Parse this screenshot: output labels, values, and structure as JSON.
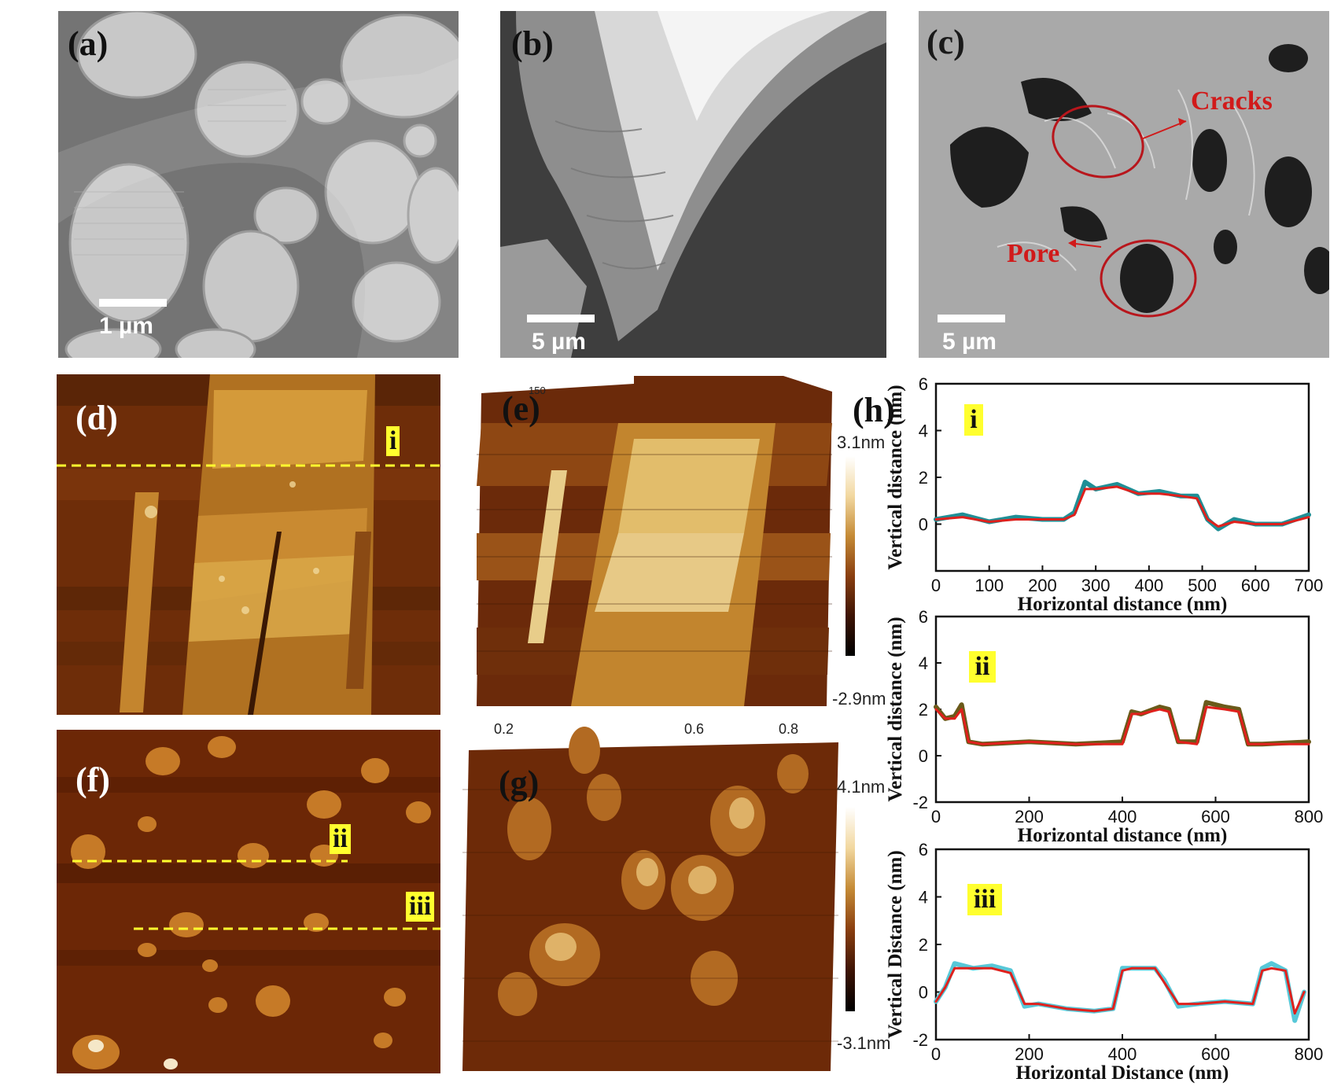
{
  "panels": {
    "a": {
      "label": "(a)",
      "scale": "1 µm"
    },
    "b": {
      "label": "(b)",
      "scale": "5 µm"
    },
    "c": {
      "label": "(c)",
      "scale": "5 µm",
      "annotations": [
        "Cracks",
        "Pore"
      ]
    },
    "d": {
      "label": "(d)",
      "line_tag": "i"
    },
    "e": {
      "label": "(e)",
      "colorbar_max": "3.1nm",
      "colorbar_min": "-2.9nm",
      "ticks": [
        "150"
      ]
    },
    "f": {
      "label": "(f)",
      "line_tags": [
        "ii",
        "iii"
      ]
    },
    "g": {
      "label": "(g)",
      "colorbar_max": "4.1nm",
      "colorbar_min": "-3.1nm",
      "ticks": [
        "0.2",
        "0.6",
        "0.8"
      ]
    },
    "h": {
      "label": "(h)"
    }
  },
  "colors": {
    "annotation_red": "#d11a1a",
    "highlight_yellow": "#ffff2e",
    "raw_teal": "#1f8f96",
    "raw_cyan": "#57c8d8",
    "raw_olive": "#6a5a1a",
    "fit_red": "#e0201c"
  },
  "chart_data": [
    {
      "type": "line",
      "tag": "i",
      "xlabel": "Horizontal distance (nm)",
      "ylabel": "Vertical distance (nm)",
      "xlim": [
        0,
        700
      ],
      "ylim": [
        -2,
        6
      ],
      "xticks": [
        0,
        100,
        200,
        300,
        400,
        500,
        600,
        700
      ],
      "yticks": [
        0,
        2,
        4,
        6
      ],
      "series": [
        {
          "role": "raw",
          "color": "#1f8f96",
          "x": [
            0,
            50,
            100,
            150,
            200,
            240,
            260,
            280,
            300,
            340,
            380,
            420,
            460,
            490,
            510,
            530,
            560,
            600,
            650,
            700
          ],
          "y": [
            0.2,
            0.4,
            0.1,
            0.3,
            0.2,
            0.2,
            0.5,
            1.8,
            1.5,
            1.7,
            1.3,
            1.4,
            1.2,
            1.2,
            0.2,
            -0.2,
            0.2,
            0.0,
            0.0,
            0.4
          ]
        },
        {
          "role": "fit",
          "color": "#e0201c",
          "x": [
            0,
            50,
            100,
            150,
            200,
            240,
            260,
            280,
            300,
            340,
            380,
            420,
            460,
            490,
            510,
            530,
            560,
            600,
            650,
            700
          ],
          "y": [
            0.2,
            0.3,
            0.1,
            0.2,
            0.2,
            0.2,
            0.4,
            1.5,
            1.5,
            1.6,
            1.3,
            1.3,
            1.2,
            1.1,
            0.2,
            -0.1,
            0.1,
            0.0,
            0.0,
            0.3
          ]
        }
      ]
    },
    {
      "type": "line",
      "tag": "ii",
      "xlabel": "Horizontal distance (nm)",
      "ylabel": "Vertical distance (nm)",
      "xlim": [
        0,
        800
      ],
      "ylim": [
        -2,
        6
      ],
      "xticks": [
        0,
        200,
        400,
        600,
        800
      ],
      "yticks": [
        -2,
        0,
        2,
        4,
        6
      ],
      "series": [
        {
          "role": "raw",
          "color": "#6a5a1a",
          "x": [
            0,
            20,
            40,
            55,
            70,
            100,
            200,
            300,
            400,
            420,
            440,
            480,
            500,
            520,
            560,
            580,
            620,
            650,
            670,
            700,
            800
          ],
          "y": [
            2.1,
            1.6,
            1.7,
            2.2,
            0.6,
            0.5,
            0.6,
            0.5,
            0.6,
            1.9,
            1.8,
            2.1,
            2.0,
            0.6,
            0.6,
            2.3,
            2.1,
            2.0,
            0.5,
            0.5,
            0.6
          ]
        },
        {
          "role": "fit",
          "color": "#e0201c",
          "x": [
            0,
            20,
            40,
            55,
            70,
            100,
            200,
            300,
            400,
            420,
            440,
            480,
            500,
            520,
            560,
            580,
            620,
            650,
            670,
            700,
            800
          ],
          "y": [
            2.0,
            1.6,
            1.6,
            2.0,
            0.6,
            0.5,
            0.6,
            0.5,
            0.5,
            1.8,
            1.8,
            2.0,
            1.9,
            0.6,
            0.5,
            2.1,
            2.0,
            1.9,
            0.5,
            0.5,
            0.5
          ]
        }
      ]
    },
    {
      "type": "line",
      "tag": "iii",
      "xlabel": "Horizontal Distance (nm)",
      "ylabel": "Vertical Distance (nm)",
      "xlim": [
        0,
        800
      ],
      "ylim": [
        -2,
        6
      ],
      "xticks": [
        0,
        200,
        400,
        600,
        800
      ],
      "yticks": [
        -2,
        0,
        2,
        4,
        6
      ],
      "series": [
        {
          "role": "raw",
          "color": "#57c8d8",
          "x": [
            0,
            20,
            40,
            80,
            120,
            160,
            190,
            220,
            280,
            340,
            380,
            400,
            420,
            470,
            490,
            520,
            560,
            620,
            680,
            700,
            720,
            750,
            770,
            790
          ],
          "y": [
            -0.4,
            0.2,
            1.2,
            1.0,
            1.1,
            0.9,
            -0.6,
            -0.5,
            -0.7,
            -0.8,
            -0.7,
            1.0,
            1.0,
            1.0,
            0.5,
            -0.6,
            -0.5,
            -0.4,
            -0.5,
            1.0,
            1.2,
            0.9,
            -1.2,
            0.0
          ]
        },
        {
          "role": "fit",
          "color": "#e0201c",
          "x": [
            0,
            20,
            40,
            80,
            120,
            160,
            190,
            220,
            280,
            340,
            380,
            400,
            420,
            470,
            490,
            520,
            560,
            620,
            680,
            700,
            720,
            750,
            770,
            790
          ],
          "y": [
            -0.4,
            0.2,
            1.0,
            1.0,
            1.0,
            0.8,
            -0.5,
            -0.5,
            -0.7,
            -0.8,
            -0.7,
            0.9,
            1.0,
            1.0,
            0.4,
            -0.5,
            -0.5,
            -0.4,
            -0.5,
            0.9,
            1.0,
            0.9,
            -0.9,
            0.0
          ]
        }
      ]
    }
  ]
}
